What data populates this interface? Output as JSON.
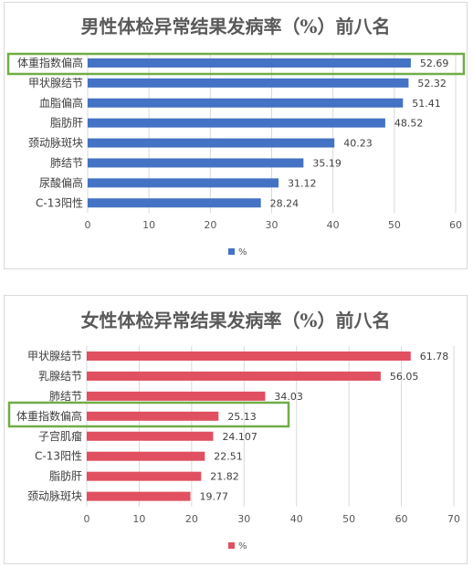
{
  "chart_data": [
    {
      "type": "bar",
      "orientation": "horizontal",
      "title": "男性体检异常结果发病率（%）前八名",
      "categories": [
        "体重指数偏高",
        "甲状腺结节",
        "血脂偏高",
        "脂肪肝",
        "颈动脉斑块",
        "肺结节",
        "尿酸偏高",
        "C-13阳性"
      ],
      "series": [
        {
          "name": "%",
          "values": [
            52.69,
            52.32,
            51.41,
            48.52,
            40.23,
            35.19,
            31.12,
            28.24
          ],
          "value_labels": [
            "52.69",
            "52.32",
            "51.41",
            "48.52",
            "40.23",
            "35.19",
            "31.12",
            "28.24"
          ],
          "color": "#4472c4"
        }
      ],
      "xlim": [
        0,
        60
      ],
      "x_ticks": [
        "0",
        "10",
        "20",
        "30",
        "40",
        "50",
        "60"
      ],
      "grid": true,
      "legend": "bottom",
      "highlight_category": "体重指数偏高",
      "highlight_color": "#70ad47"
    },
    {
      "type": "bar",
      "orientation": "horizontal",
      "title": "女性体检异常结果发病率（%）前八名",
      "categories": [
        "甲状腺结节",
        "乳腺结节",
        "肺结节",
        "体重指数偏高",
        "子宫肌瘤",
        "C-13阳性",
        "脂肪肝",
        "颈动脉斑块"
      ],
      "series": [
        {
          "name": "%",
          "values": [
            61.78,
            56.05,
            34.03,
            25.13,
            24.107,
            22.51,
            21.82,
            19.77
          ],
          "value_labels": [
            "61.78",
            "56.05",
            "34.03",
            "25.13",
            "24.107",
            "22.51",
            "21.82",
            "19.77"
          ],
          "color": "#e05060"
        }
      ],
      "xlim": [
        0,
        70
      ],
      "x_ticks": [
        "0",
        "10",
        "20",
        "30",
        "40",
        "50",
        "60",
        "70"
      ],
      "grid": true,
      "legend": "bottom",
      "highlight_category": "体重指数偏高",
      "highlight_color": "#70ad47"
    }
  ]
}
